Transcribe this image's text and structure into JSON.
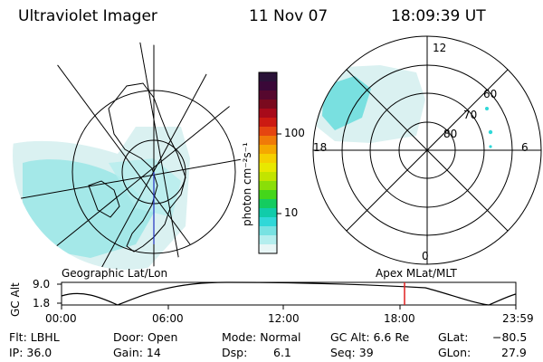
{
  "header": {
    "instrument": "Ultraviolet Imager",
    "date": "11 Nov 07",
    "time": "18:09:39 UT"
  },
  "colorbar": {
    "unit_label": "photon cm⁻²s⁻¹",
    "ticks": [
      "100",
      "10"
    ],
    "colors": [
      "#2a1238",
      "#3a0838",
      "#56082e",
      "#7a0a1e",
      "#a80a1a",
      "#cc1a12",
      "#e54510",
      "#f07a08",
      "#f5a800",
      "#f5d000",
      "#e8e800",
      "#c2e400",
      "#8ade08",
      "#44d61a",
      "#14cc60",
      "#10ccaa",
      "#30d8d8",
      "#78e2e2",
      "#b4eeee",
      "#e8f6f6"
    ]
  },
  "left_map": {
    "label": "Geographic Lat/Lon"
  },
  "right_map": {
    "label": "Apex  MLat/MLT",
    "lat_labels": [
      "80",
      "70",
      "60"
    ],
    "mlt_labels": {
      "top": "12",
      "left": "18",
      "right": "6",
      "bottom": "0"
    }
  },
  "altitude_plot": {
    "y_axis_label": "GC Alt",
    "y_ticks": [
      "9.0",
      "1.8"
    ],
    "x_ticks": [
      "00:00",
      "06:00",
      "12:00",
      "18:00",
      "23:59"
    ],
    "marker_color": "#e02020"
  },
  "info_panel": {
    "filter": "Flt: LBHL",
    "ip": "IP: 36.0",
    "door": "Door: Open",
    "gain": "Gain: 14",
    "mode": "Mode: Normal",
    "dsp": "Dsp:",
    "dsp_value": "6.1",
    "gc_alt": "GC Alt: 6.6 Re",
    "seq": "Seq: 39",
    "glat_label": "GLat:",
    "glat_value": "−80.5",
    "glon_label": "GLon:",
    "glon_value": "27.9"
  }
}
